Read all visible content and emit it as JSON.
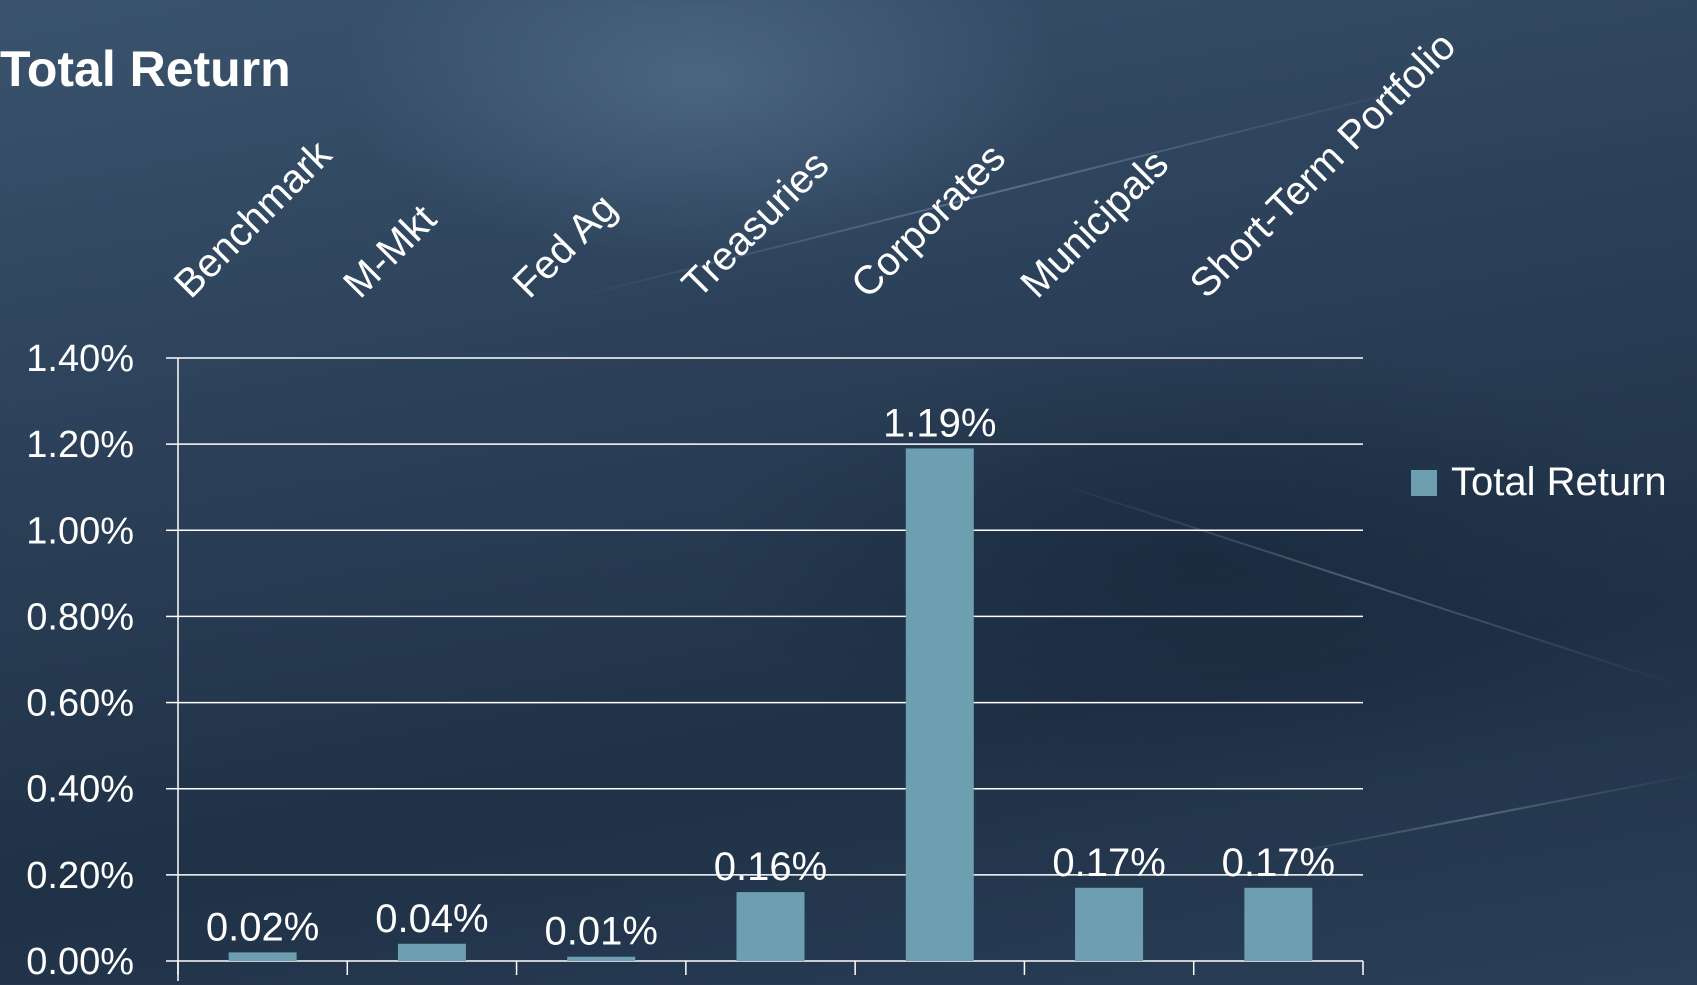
{
  "chart_data": {
    "type": "bar",
    "title": "Total Return",
    "categories": [
      "Benchmark",
      "M-Mkt",
      "Fed Ag",
      "Treasuries",
      "Corporates",
      "Municipals",
      "Short-Term Portfolio"
    ],
    "series": [
      {
        "name": "Total Return",
        "values": [
          0.02,
          0.04,
          0.01,
          0.16,
          1.19,
          0.17,
          0.17
        ],
        "labels": [
          "0.02%",
          "0.04%",
          "0.01%",
          "0.16%",
          "1.19%",
          "0.17%",
          "0.17%"
        ]
      }
    ],
    "y_ticks": [
      "0.00%",
      "0.20%",
      "0.40%",
      "0.60%",
      "0.80%",
      "1.00%",
      "1.20%",
      "1.40%"
    ],
    "ylim": [
      0,
      1.4
    ],
    "xlabel": "",
    "ylabel": "",
    "grid": true,
    "legend_position": "right",
    "x_axis_labels_position": "top"
  },
  "colors": {
    "bar": "#6e9fb0",
    "gridline": "#ffffff",
    "text": "#ffffff"
  }
}
